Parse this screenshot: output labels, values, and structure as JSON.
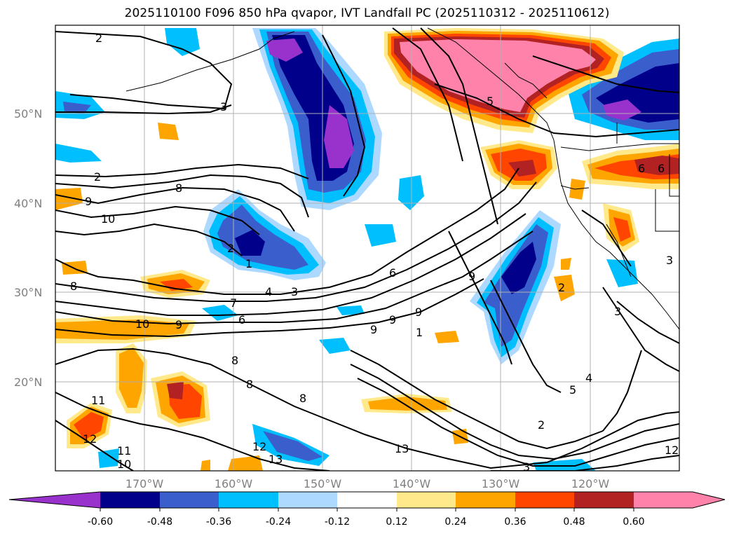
{
  "title": "2025110100 F096 850 hPa qvapor, IVT Landfall PC (2025110312 - 2025110612)",
  "map": {
    "lon_ticks": [
      "170°W",
      "160°W",
      "150°W",
      "140°W",
      "130°W",
      "120°W"
    ],
    "lat_ticks": [
      "50°N",
      "40°N",
      "30°N",
      "20°N"
    ],
    "grid": true
  },
  "colorbar": {
    "ticks": [
      "-0.60",
      "-0.48",
      "-0.36",
      "-0.24",
      "-0.12",
      "0.12",
      "0.24",
      "0.36",
      "0.48",
      "0.60"
    ],
    "colors": [
      "#9932cc",
      "#00008b",
      "#3a5fcd",
      "#00bfff",
      "#add8ff",
      "#ffffff",
      "#ffe98a",
      "#ffa500",
      "#ff4500",
      "#b22222",
      "#ff82ab"
    ],
    "extend": "both"
  },
  "contour_labels": [
    "2",
    "3",
    "5",
    "2",
    "8",
    "9",
    "10",
    "2",
    "1",
    "4",
    "3",
    "6",
    "8",
    "7",
    "6",
    "10",
    "9",
    "9",
    "9",
    "9",
    "1",
    "9",
    "8",
    "8",
    "8",
    "11",
    "12",
    "11",
    "10",
    "12",
    "13",
    "13",
    "4",
    "5",
    "3",
    "2",
    "2",
    "3",
    "6",
    "6",
    "3",
    "12"
  ],
  "icons": {
    "map": "weather-map-icon"
  }
}
